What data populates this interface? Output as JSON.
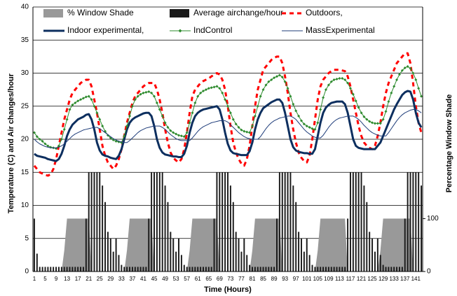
{
  "chart_data": {
    "type": "combo",
    "x_label": "Time (Hours)",
    "y_label": "Temperature (C) and Air changes/hour",
    "y2_label": "Percentage Window Shade",
    "categories": [
      1,
      null,
      null,
      null,
      5,
      null,
      null,
      null,
      9,
      null,
      null,
      null,
      13,
      null,
      null,
      null,
      17,
      null,
      null,
      null,
      21,
      null,
      null,
      null,
      25,
      null,
      null,
      null,
      29,
      null,
      null,
      null,
      33,
      null,
      null,
      null,
      37,
      null,
      null,
      null,
      41,
      null,
      null,
      null,
      45,
      null,
      null,
      null,
      49,
      null,
      null,
      null,
      53,
      null,
      null,
      null,
      57,
      null,
      null,
      null,
      61,
      null,
      null,
      null,
      65,
      null,
      null,
      null,
      69,
      null,
      null,
      null,
      73,
      null,
      null,
      null,
      77,
      null,
      null,
      null,
      81,
      null,
      null,
      null,
      85,
      null,
      null,
      null,
      89,
      null,
      null,
      null,
      93,
      null,
      null,
      null,
      97,
      null,
      null,
      null,
      101,
      null,
      null,
      null,
      105,
      null,
      null,
      null,
      109,
      null,
      null,
      null,
      113,
      null,
      null,
      null,
      117,
      null,
      null,
      null,
      121,
      null,
      null,
      null,
      125,
      null,
      null,
      null,
      129,
      null,
      null,
      null,
      133,
      null,
      null,
      null,
      137,
      null,
      null,
      null,
      141,
      null,
      null
    ],
    "ylim": [
      0,
      40
    ],
    "yticks": [
      0,
      5,
      10,
      15,
      20,
      25,
      30,
      35,
      40
    ],
    "y2lim": [
      0,
      500
    ],
    "y2ticks": [
      0,
      100
    ],
    "grid": true,
    "legend": "top",
    "series": [
      {
        "name": "% Window Shade",
        "type": "area",
        "axis": "y2",
        "color": "#999999",
        "values": [
          0,
          0,
          0,
          0,
          0,
          0,
          0,
          0,
          0,
          0,
          0,
          40,
          100,
          100,
          100,
          100,
          100,
          100,
          100,
          100,
          100,
          0,
          0,
          0,
          0,
          0,
          0,
          0,
          0,
          0,
          0,
          0,
          0,
          0,
          40,
          100,
          100,
          100,
          100,
          100,
          100,
          100,
          100,
          100,
          0,
          0,
          0,
          0,
          0,
          0,
          0,
          0,
          0,
          0,
          0,
          0,
          0,
          40,
          100,
          100,
          100,
          100,
          100,
          100,
          100,
          100,
          100,
          100,
          0,
          0,
          0,
          0,
          0,
          0,
          0,
          0,
          0,
          0,
          0,
          0,
          40,
          100,
          100,
          100,
          100,
          100,
          100,
          100,
          100,
          100,
          100,
          0,
          0,
          0,
          0,
          0,
          0,
          0,
          0,
          0,
          0,
          0,
          0,
          0,
          40,
          100,
          100,
          100,
          100,
          100,
          100,
          100,
          100,
          100,
          100,
          0,
          0,
          0,
          0,
          0,
          0,
          0,
          0,
          0,
          0,
          0,
          0,
          40,
          100,
          100,
          100,
          100,
          100,
          100,
          100,
          100,
          100,
          100,
          100,
          0,
          0,
          0,
          0
        ]
      },
      {
        "name": "Average airchange/hour",
        "type": "bar",
        "color": "#1a1a1a",
        "values": [
          8,
          2.7,
          0.7,
          0.7,
          0.7,
          0.7,
          0.7,
          0.7,
          0.7,
          0.7,
          0.7,
          0.7,
          0.7,
          0.7,
          0.7,
          0.7,
          0.7,
          0.7,
          0.7,
          8,
          15,
          15,
          15,
          15,
          15,
          13,
          10.5,
          6,
          5,
          3,
          5,
          2.5,
          1,
          0.7,
          0.7,
          0.7,
          0.7,
          0.7,
          0.7,
          0.7,
          0.7,
          0.7,
          8,
          15,
          15,
          15,
          15,
          15,
          13,
          10.5,
          6,
          5,
          3,
          5,
          2.5,
          1,
          0.7,
          0.7,
          0.7,
          0.7,
          0.7,
          0.7,
          0.7,
          0.7,
          0.7,
          0.7,
          8,
          15,
          15,
          15,
          15,
          15,
          13,
          10.5,
          6,
          5,
          3,
          5,
          2.5,
          1,
          0.7,
          0.7,
          0.7,
          0.7,
          0.7,
          0.7,
          0.7,
          0.7,
          0.7,
          8,
          15,
          15,
          15,
          15,
          15,
          13,
          10.5,
          6,
          5,
          3,
          5,
          2.5,
          1,
          0.7,
          0.7,
          0.7,
          0.7,
          0.7,
          0.7,
          0.7,
          0.7,
          0.7,
          0.7,
          0.7,
          0.7,
          8,
          15,
          15,
          15,
          15,
          15,
          13,
          10.5,
          6,
          5,
          3,
          5,
          2.5,
          1,
          0.7,
          0.7,
          0.7,
          0.7,
          0.7,
          0.7,
          0.7,
          8,
          15,
          15,
          15,
          15,
          15,
          13
        ]
      },
      {
        "name": "Outdoors,",
        "type": "line",
        "style": "dashed",
        "width": 3,
        "color": "#ff0000",
        "values": [
          16,
          15.5,
          15,
          14.8,
          14.6,
          14.5,
          14.7,
          15.5,
          17,
          19,
          21,
          23,
          24.5,
          26,
          27,
          27.5,
          28,
          28.5,
          28.8,
          29,
          29,
          28,
          26,
          24,
          21.5,
          19,
          17.5,
          16.5,
          16,
          15.5,
          16,
          17,
          18.5,
          20.5,
          22.5,
          24,
          25.5,
          26.5,
          27,
          27.5,
          28,
          28.3,
          28.5,
          28.5,
          28.5,
          27.5,
          26,
          24,
          21.5,
          19.5,
          18,
          17.2,
          16.8,
          16.5,
          17,
          18.5,
          21,
          24,
          26.5,
          27.5,
          28,
          28.5,
          28.8,
          29,
          29.2,
          29.5,
          29.8,
          30,
          29.8,
          29,
          27.5,
          25,
          22,
          19.5,
          18,
          17,
          16.3,
          16,
          17,
          19,
          22,
          25,
          27.5,
          29,
          30.5,
          31,
          31.5,
          32,
          32.3,
          32.5,
          32.5,
          31.5,
          29.5,
          27,
          24,
          21.5,
          19.5,
          18,
          17.2,
          16.7,
          16.5,
          17.5,
          20,
          23,
          26,
          28,
          29,
          29.5,
          30,
          30.3,
          30.5,
          30.5,
          30.5,
          30.4,
          30.3,
          29.5,
          28,
          26,
          24,
          22,
          20.5,
          19.5,
          19,
          18.7,
          18.5,
          19,
          20.5,
          22.5,
          25,
          27,
          28.5,
          29.5,
          30.5,
          31.5,
          32,
          32.5,
          33,
          33,
          31.5,
          28.5,
          25,
          22.5,
          21
        ]
      },
      {
        "name": "Indoor experimental,",
        "type": "line",
        "width": 3,
        "color": "#0d2f5f",
        "values": [
          17.8,
          17.5,
          17.4,
          17.3,
          17.2,
          17,
          16.9,
          16.8,
          16.7,
          17,
          17.8,
          19,
          20.5,
          21.5,
          22.2,
          22.6,
          23,
          23.2,
          23.4,
          23.7,
          23.8,
          23,
          21.5,
          19.5,
          18.3,
          17.7,
          17.5,
          17.4,
          17.2,
          17.1,
          17,
          17.5,
          18.5,
          20,
          21.5,
          22.5,
          23,
          23.3,
          23.5,
          23.7,
          23.9,
          24,
          24,
          23.5,
          22,
          20,
          18.7,
          18,
          17.7,
          17.6,
          17.5,
          17.4,
          17.4,
          17.3,
          17.3,
          17.8,
          19,
          21,
          22.5,
          23.5,
          24,
          24.3,
          24.5,
          24.6,
          24.7,
          24.8,
          24.9,
          25,
          24.5,
          23,
          21,
          19.3,
          18.3,
          17.9,
          17.8,
          17.7,
          17.6,
          17.6,
          17.6,
          18.2,
          19.5,
          21.5,
          23,
          24,
          24.7,
          25,
          25.3,
          25.6,
          25.8,
          26,
          26,
          25.5,
          24,
          22,
          20,
          18.8,
          18.3,
          18.1,
          18,
          17.9,
          17.9,
          17.8,
          17.8,
          18.5,
          20.5,
          22.5,
          24,
          24.8,
          25.2,
          25.5,
          25.6,
          25.7,
          25.7,
          25.7,
          25.3,
          24,
          22,
          20,
          19,
          18.7,
          18.6,
          18.5,
          18.5,
          18.5,
          18.5,
          18.5,
          19,
          19.5,
          20.5,
          21.5,
          22.5,
          23.5,
          24.5,
          25.3,
          26,
          26.7,
          27.1,
          27.3,
          27.2,
          26,
          24,
          22.5,
          21.8
        ]
      },
      {
        "name": "IndControl",
        "type": "line",
        "marker": "diamond",
        "width": 1,
        "color": "#2e8b2e",
        "values": [
          21,
          20.4,
          20,
          19.7,
          19.3,
          19,
          18.8,
          18.7,
          18.6,
          19,
          20,
          21.5,
          23,
          24.5,
          25.2,
          25.5,
          25.8,
          26,
          26.2,
          26.4,
          26.5,
          26,
          25,
          24,
          23,
          22,
          21.2,
          20.6,
          20.2,
          19.9,
          19.7,
          19.6,
          19.5,
          20.5,
          22,
          23.5,
          25,
          26,
          26.5,
          26.8,
          27,
          27.1,
          27.2,
          27,
          26.5,
          25.5,
          24.5,
          23.5,
          22.5,
          21.8,
          21.3,
          21,
          20.8,
          20.6,
          20.5,
          20.4,
          21,
          22.5,
          24,
          25.5,
          26.5,
          27,
          27.3,
          27.5,
          27.7,
          27.8,
          27.9,
          28,
          27.7,
          27,
          26,
          25,
          24,
          23,
          22.3,
          21.8,
          21.4,
          21.2,
          21.1,
          21,
          22,
          23.5,
          25,
          26.5,
          27.5,
          28.2,
          28.7,
          29,
          29.3,
          29.5,
          29.7,
          29.4,
          28.7,
          27.7,
          26.5,
          25.3,
          24.3,
          23.5,
          22.8,
          22.3,
          22,
          21.8,
          21.6,
          21.5,
          22.5,
          24.5,
          26.3,
          27.5,
          28.2,
          28.7,
          29,
          29.1,
          29.2,
          29.2,
          29,
          28.5,
          27.7,
          26.8,
          25.8,
          24.8,
          24,
          23.4,
          23,
          22.7,
          22.5,
          22.4,
          22.4,
          22.4,
          23,
          24.2,
          25.7,
          27,
          28,
          29,
          29.8,
          30.4,
          30.8,
          31,
          30.7,
          30,
          29,
          27.7,
          26.5
        ]
      },
      {
        "name": "MassExperimental",
        "type": "line",
        "width": 1,
        "color": "#1f3d7a",
        "values": [
          20,
          19.6,
          19.3,
          19.1,
          18.9,
          18.8,
          18.7,
          18.7,
          18.7,
          18.8,
          19,
          19.3,
          19.7,
          20.1,
          20.5,
          20.8,
          21,
          21.2,
          21.4,
          21.5,
          21.6,
          21.7,
          21.8,
          21.8,
          21.6,
          21.3,
          21,
          20.7,
          20.4,
          20.1,
          19.9,
          19.7,
          19.6,
          19.5,
          19.5,
          19.8,
          20.2,
          20.6,
          21,
          21.3,
          21.5,
          21.7,
          21.8,
          21.9,
          22,
          22,
          22,
          21.8,
          21.5,
          21.1,
          20.7,
          20.4,
          20.1,
          19.9,
          19.8,
          19.8,
          19.8,
          19.8,
          20.2,
          20.7,
          21.2,
          21.6,
          21.9,
          22.1,
          22.3,
          22.5,
          22.6,
          22.7,
          22.8,
          22.8,
          22.8,
          22.6,
          22.2,
          21.8,
          21.4,
          21,
          20.7,
          20.4,
          20.2,
          20.1,
          20,
          20,
          20,
          20.4,
          21,
          21.6,
          22.1,
          22.5,
          22.8,
          23,
          23.2,
          23.3,
          23.4,
          23.5,
          23.5,
          23.3,
          23,
          22.5,
          22,
          21.5,
          21.1,
          20.8,
          20.5,
          20.3,
          20.2,
          20.2,
          20.6,
          21.2,
          21.8,
          22.3,
          22.7,
          23,
          23.2,
          23.3,
          23.4,
          23.5,
          23.5,
          23.5,
          23.3,
          23,
          22.6,
          22.1,
          21.7,
          21.3,
          21,
          20.8,
          20.6,
          20.5,
          20.5,
          20.5,
          21,
          21.6,
          22.2,
          22.8,
          23.3,
          23.7,
          24,
          24.2,
          24.4,
          24.5,
          24.5,
          24.3,
          24
        ]
      }
    ]
  }
}
